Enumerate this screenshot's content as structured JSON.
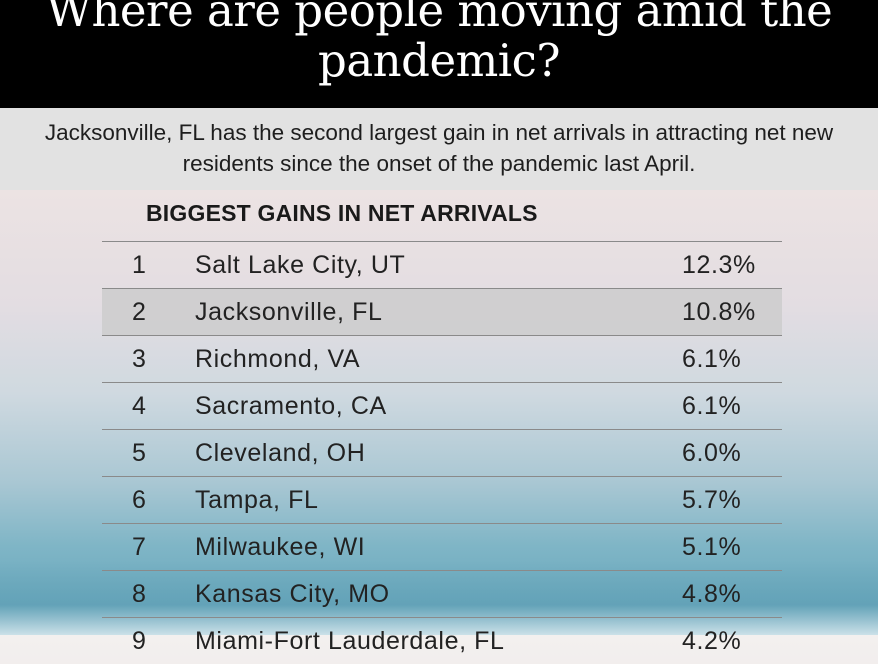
{
  "header": {
    "title": "Where are people moving amid the pandemic?"
  },
  "subtitle": {
    "text": "Jacksonville, FL has the second largest gain in net arrivals in attracting net new residents since the onset of the pandemic last April."
  },
  "chart_data": {
    "type": "table",
    "title": "BIGGEST GAINS IN NET ARRIVALS",
    "columns": [
      "rank",
      "city",
      "net_arrivals_gain"
    ],
    "rows": [
      {
        "rank": "1",
        "city": "Salt Lake City, UT",
        "value": "12.3%"
      },
      {
        "rank": "2",
        "city": "Jacksonville, FL",
        "value": "10.8%"
      },
      {
        "rank": "3",
        "city": "Richmond, VA",
        "value": "6.1%"
      },
      {
        "rank": "4",
        "city": "Sacramento, CA",
        "value": "6.1%"
      },
      {
        "rank": "5",
        "city": "Cleveland, OH",
        "value": "6.0%"
      },
      {
        "rank": "6",
        "city": "Tampa, FL",
        "value": "5.7%"
      },
      {
        "rank": "7",
        "city": "Milwaukee, WI",
        "value": "5.1%"
      },
      {
        "rank": "8",
        "city": "Kansas City, MO",
        "value": "4.8%"
      },
      {
        "rank": "9",
        "city": "Miami-Fort Lauderdale, FL",
        "value": "4.2%"
      }
    ],
    "highlight_rank": "2"
  }
}
